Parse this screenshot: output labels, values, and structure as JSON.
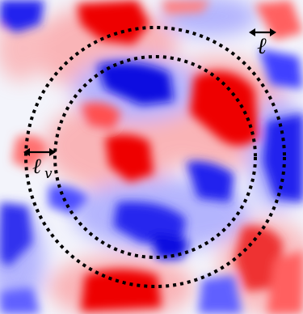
{
  "figure": {
    "labels": {
      "ell": "ℓ",
      "ell_v_main": "ℓ",
      "ell_v_sub": "v"
    },
    "colors": {
      "positive": "#ff0000",
      "negative": "#0000ff",
      "neutral": "#ffffff",
      "circles": "#000000"
    },
    "icons": [
      "double-arrow-icon",
      "double-arrow-icon"
    ]
  }
}
